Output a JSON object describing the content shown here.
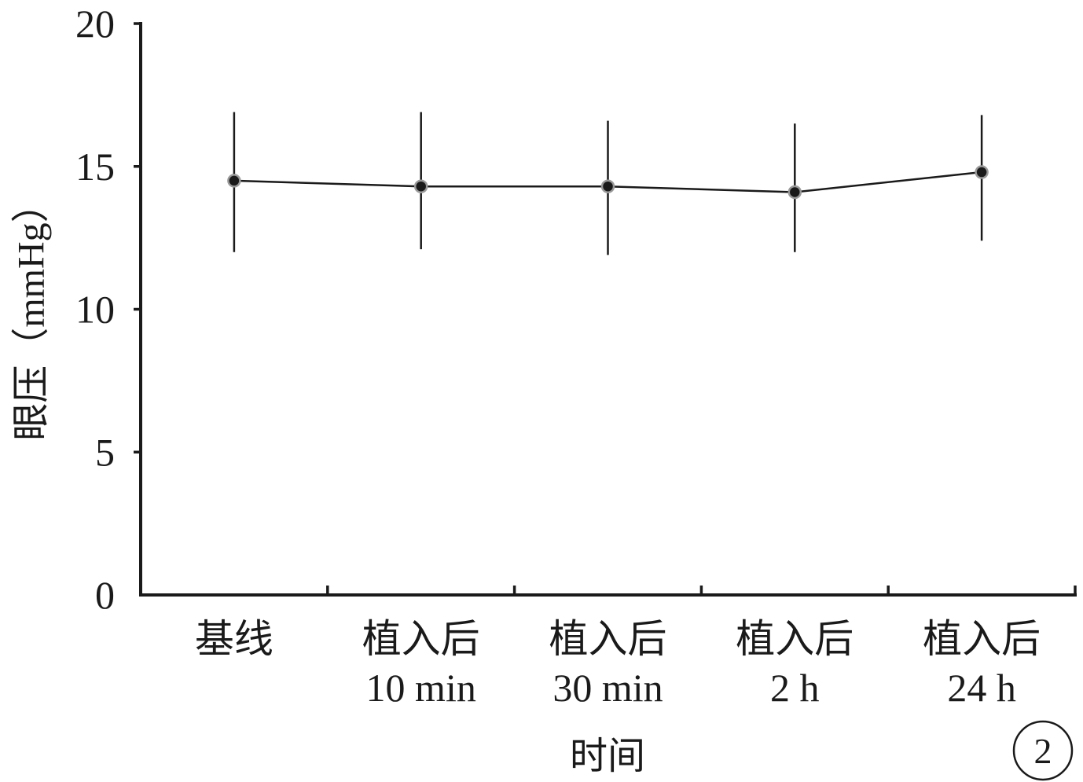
{
  "chart_data": {
    "type": "line",
    "categories": [
      "基线",
      "植入后\n10 min",
      "植入后\n30 min",
      "植入后\n2 h",
      "植入后\n24 h"
    ],
    "series": [
      {
        "values": [
          14.5,
          14.3,
          14.3,
          14.1,
          14.8
        ],
        "error_high": [
          16.9,
          16.9,
          16.6,
          16.5,
          16.8
        ],
        "error_low": [
          12.0,
          12.1,
          11.9,
          12.0,
          12.4
        ]
      }
    ],
    "xlabel": "时间",
    "ylabel": "眼压（mmHg）",
    "ylim": [
      0,
      20
    ],
    "yticks": [
      0,
      5,
      10,
      15,
      20
    ],
    "grid": false,
    "colors": {
      "line": "#1a1a1a",
      "marker_fill": "#1a1a1a",
      "marker_edge": "#9a9a9a"
    }
  },
  "panel_label": "2"
}
